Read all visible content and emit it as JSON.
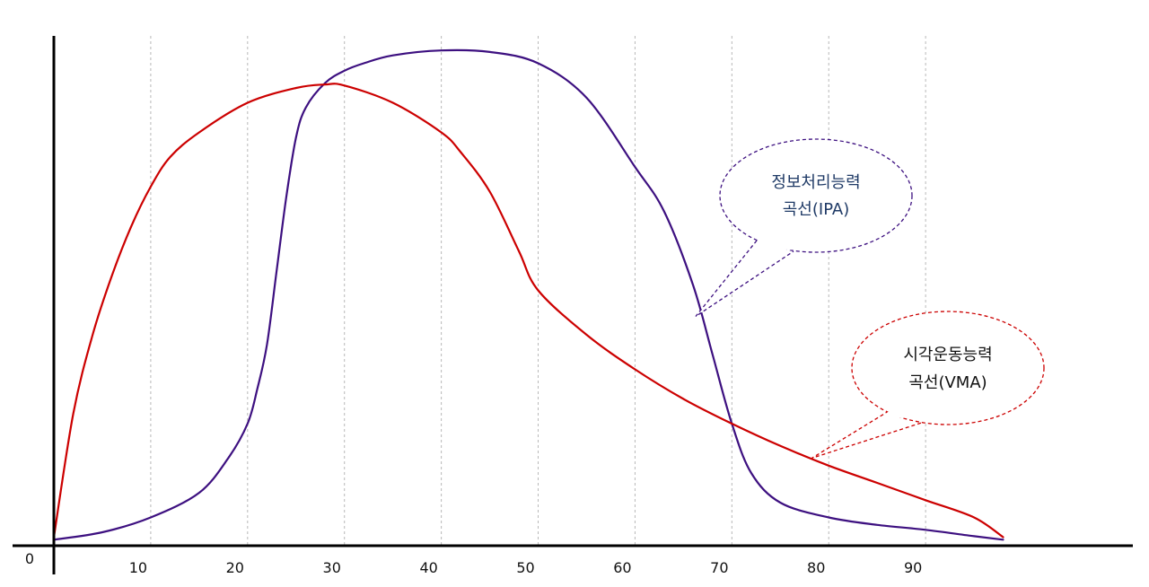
{
  "chart_data": {
    "type": "line",
    "title": "",
    "xlabel": "",
    "ylabel": "",
    "xlim": [
      0,
      105
    ],
    "ylim": [
      0,
      100
    ],
    "grid": "vertical-dashed",
    "x_ticks": [
      10,
      20,
      30,
      40,
      50,
      60,
      70,
      80,
      90
    ],
    "origin_label": "0",
    "series": [
      {
        "key": "ipa",
        "color": "#3d1080",
        "x": [
          0,
          5,
          10,
          15,
          18,
          20,
          21,
          22,
          23,
          24,
          25,
          26,
          28,
          30,
          32,
          35,
          40,
          45,
          50,
          55,
          60,
          63,
          66,
          68,
          70,
          72,
          75,
          80,
          85,
          90,
          95,
          98
        ],
        "y": [
          0.5,
          2,
          5,
          10,
          17,
          24,
          31,
          40,
          55,
          70,
          82,
          88,
          93,
          95.5,
          97,
          98.6,
          99.6,
          99.3,
          97,
          90,
          76,
          67,
          52,
          38,
          24,
          14,
          8,
          5,
          3.5,
          2.5,
          1.2,
          0.5
        ]
      },
      {
        "key": "vma",
        "color": "#cc0000",
        "x": [
          0,
          2,
          4,
          6,
          8,
          10,
          12,
          15,
          20,
          25,
          28,
          30,
          35,
          40,
          42,
          45,
          48,
          50,
          55,
          60,
          65,
          70,
          75,
          80,
          85,
          90,
          95,
          98
        ],
        "y": [
          1,
          26,
          42,
          54,
          64,
          72,
          78,
          83,
          89,
          92,
          92.7,
          92.5,
          89,
          83,
          79,
          71,
          59,
          51,
          42,
          35,
          29,
          24,
          19.5,
          15.5,
          12,
          8.5,
          5,
          1
        ]
      }
    ],
    "annotations": [
      {
        "key": "ipa",
        "lines": [
          "정보처리능력",
          "곡선(IPA)"
        ],
        "color": "#1f3a66",
        "point_x": 67
      },
      {
        "key": "vma",
        "lines": [
          "시각운동능력",
          "곡선(VMA)"
        ],
        "color": "#111111",
        "point_x": 79
      }
    ]
  }
}
